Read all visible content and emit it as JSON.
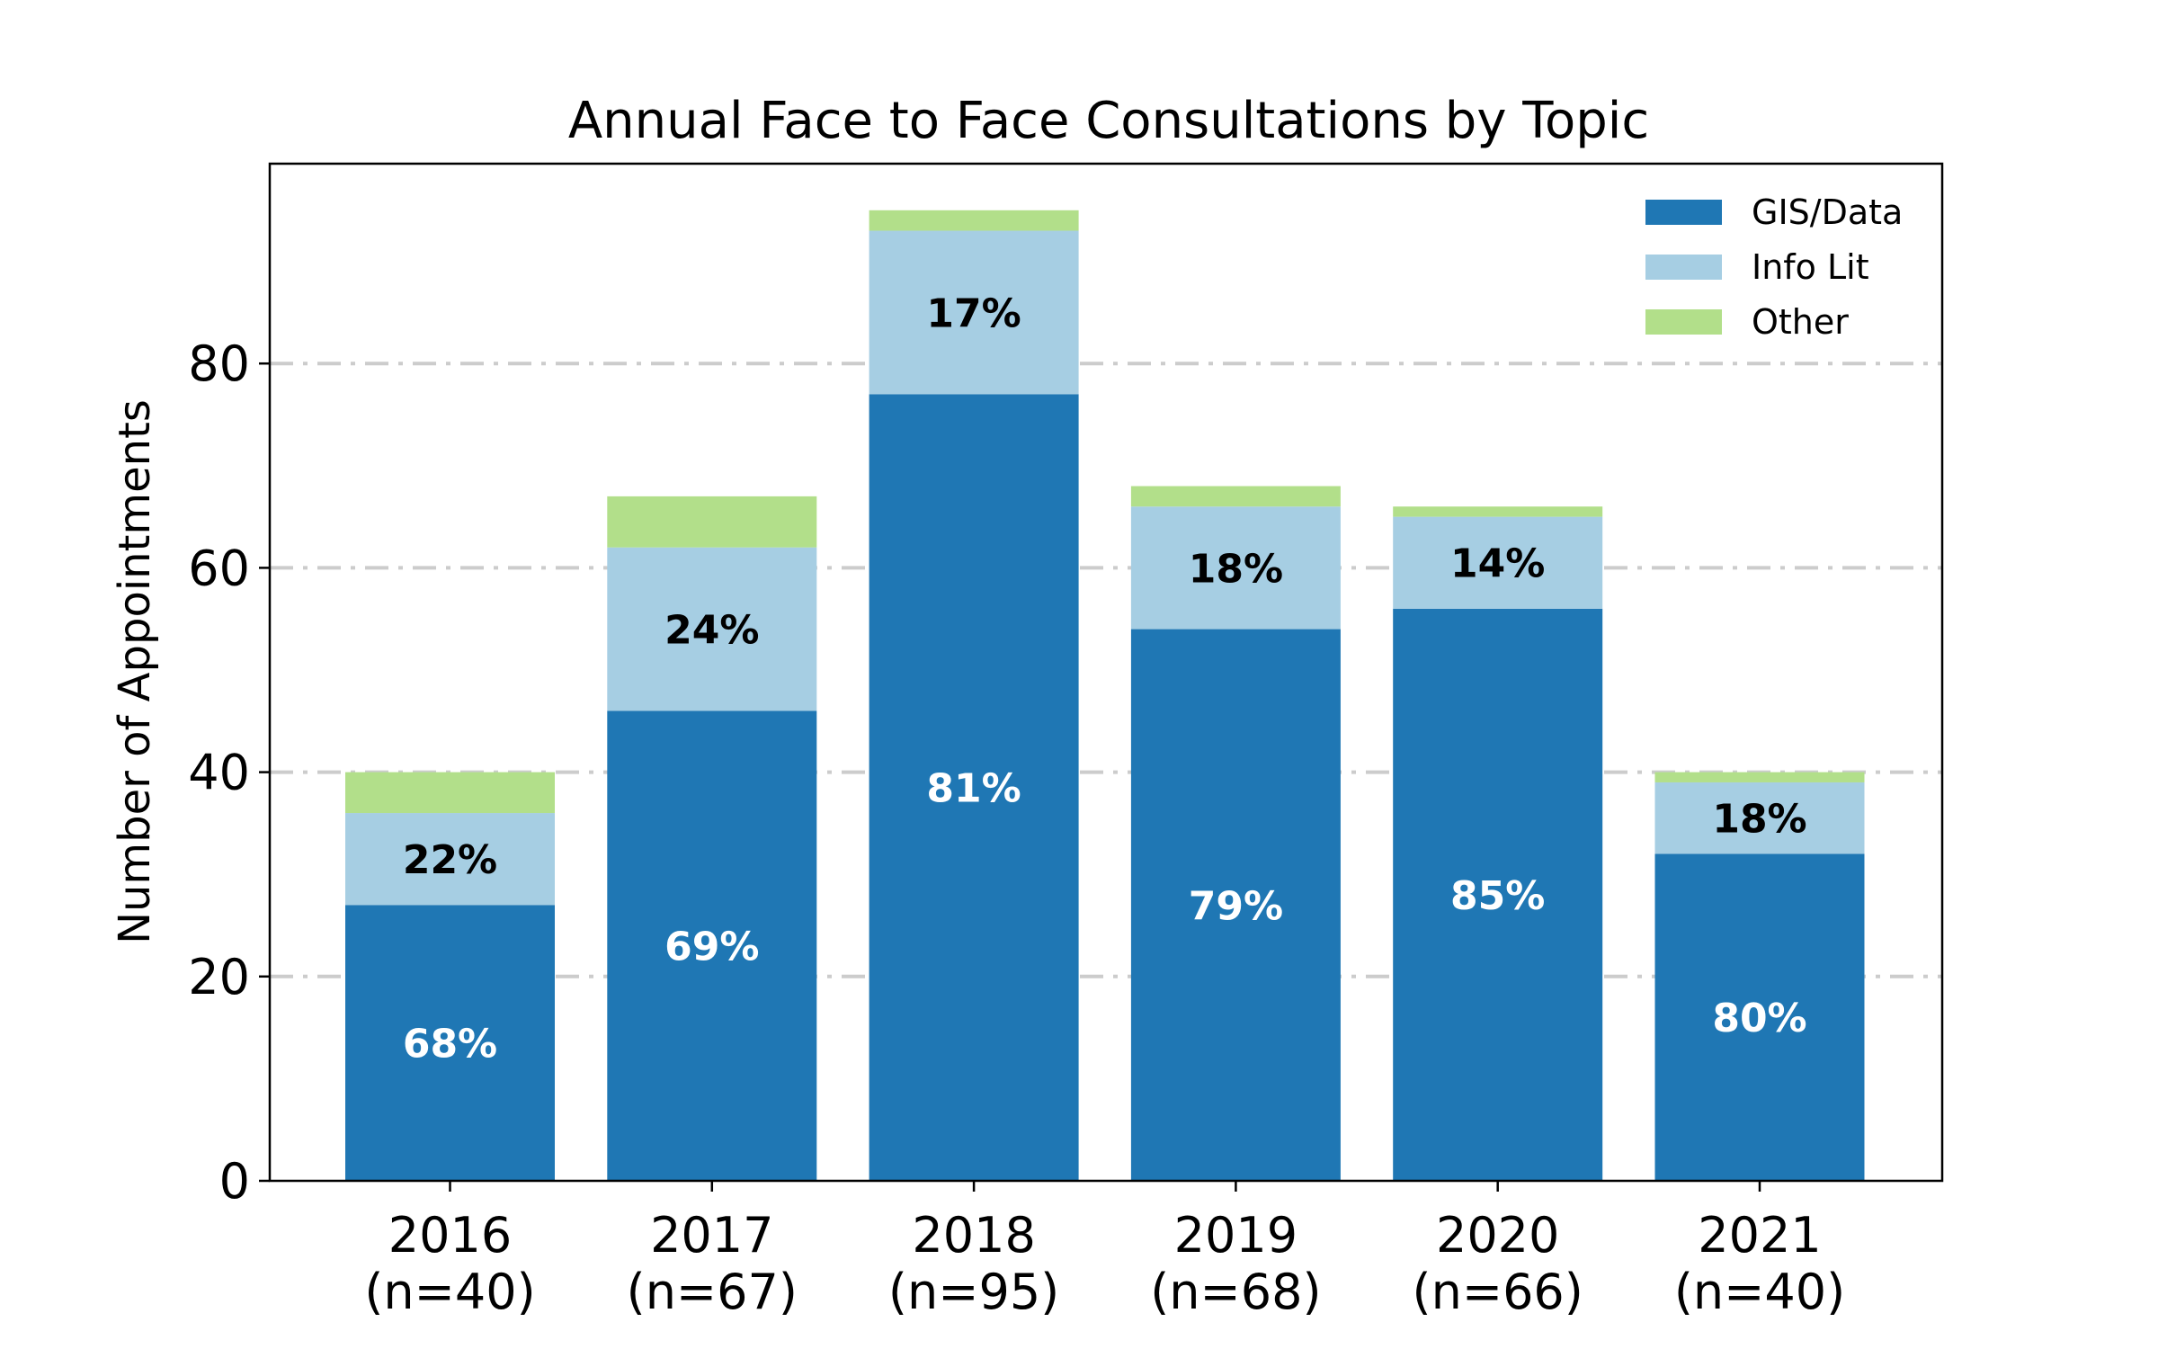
{
  "chart_data": {
    "type": "bar",
    "stacked": true,
    "title": "Annual Face to Face Consultations by Topic",
    "xlabel": "",
    "ylabel": "Number of Appointments",
    "categories": [
      "2016",
      "2017",
      "2018",
      "2019",
      "2020",
      "2021"
    ],
    "category_sublabels": [
      "(n=40)",
      "(n=67)",
      "(n=95)",
      "(n=68)",
      "(n=66)",
      "(n=40)"
    ],
    "series": [
      {
        "name": "GIS/Data",
        "color": "#1f77b4",
        "values": [
          27,
          46,
          77,
          54,
          56,
          32
        ],
        "labels": [
          "68%",
          "69%",
          "81%",
          "79%",
          "85%",
          "80%"
        ],
        "label_color": "#ffffff"
      },
      {
        "name": "Info Lit",
        "color": "#a6cee3",
        "values": [
          9,
          16,
          16,
          12,
          9,
          7
        ],
        "labels": [
          "22%",
          "24%",
          "17%",
          "18%",
          "14%",
          "18%"
        ],
        "label_color": "#000000"
      },
      {
        "name": "Other",
        "color": "#b2df8a",
        "values": [
          4,
          5,
          2,
          2,
          1,
          1
        ]
      }
    ],
    "ylim": [
      0,
      100
    ],
    "yticks": [
      0,
      20,
      40,
      60,
      80
    ],
    "grid": "y, dash-dot, light gray",
    "legend": "top-right"
  }
}
